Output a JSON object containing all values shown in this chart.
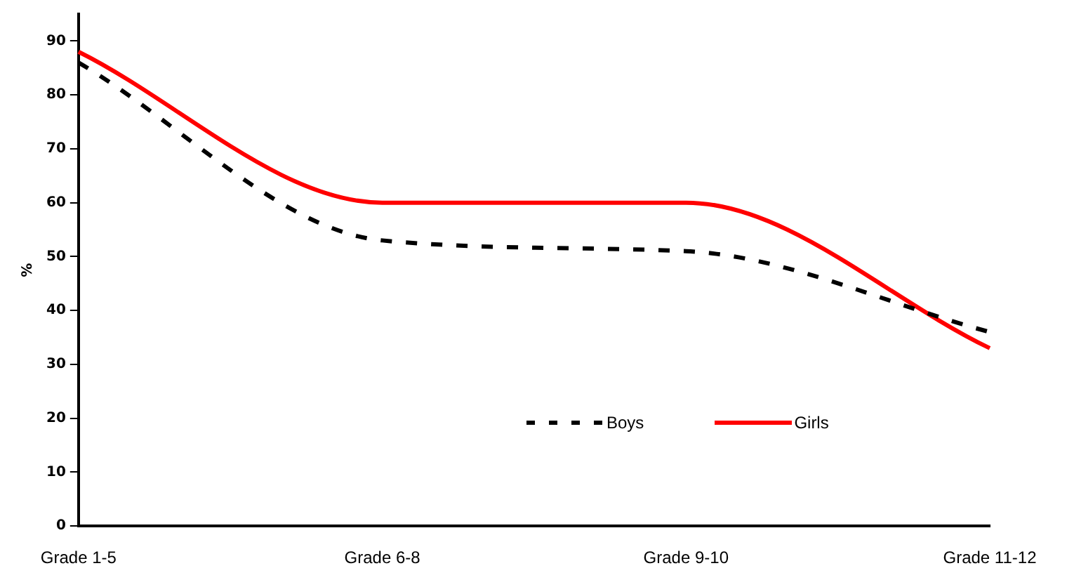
{
  "chart_data": {
    "type": "line",
    "ylabel": "%",
    "categories": [
      "Grade 1-5",
      "Grade 6-8",
      "Grade 9-10",
      "Grade 11-12"
    ],
    "series": [
      {
        "name": "Boys",
        "color": "#000000",
        "values": [
          86,
          53,
          51,
          36
        ],
        "line_style": "dashed"
      },
      {
        "name": "Girls",
        "color": "#ff0000",
        "values": [
          88,
          60,
          60,
          33
        ],
        "line_style": "solid"
      }
    ],
    "ylim": [
      0,
      95
    ],
    "yticks": [
      0,
      10,
      20,
      30,
      40,
      50,
      60,
      70,
      80,
      90
    ],
    "grid": false,
    "legend": "bottom right",
    "marker": "none"
  }
}
